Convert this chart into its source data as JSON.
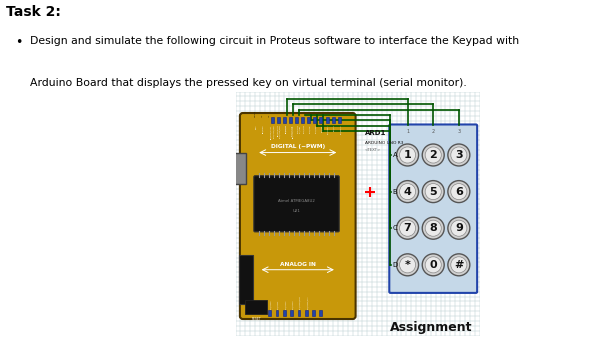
{
  "title": "Task 2:",
  "bullet_line1": "Design and simulate the following circuit in Proteus software to interface the Keypad with",
  "bullet_line2": "Arduino Board that displays the pressed key on virtual terminal (serial monitor).",
  "caption": "Assignment",
  "bg_color": "#ccdde0",
  "grid_color": "#b8cdd0",
  "arduino_body_color": "#c8980a",
  "chip_color": "#111111",
  "wire_color": "#005500",
  "wire_color_blue": "#003388",
  "keypad_bg": "#c5d8e8",
  "keypad_border": "#2244aa",
  "ard_label": "ARD1",
  "ard_sublabel": "ARDUINO UNO R3",
  "ard_subtext": "<TEXT>",
  "digital_label": "DIGITAL (~PWM)",
  "analog_label": "ANALOG IN",
  "row_labels": [
    "A",
    "B",
    "C",
    "D"
  ],
  "col_labels": [
    "1",
    "2",
    "3"
  ],
  "keypad_keys": [
    [
      "1",
      "2",
      "3"
    ],
    [
      "4",
      "5",
      "6"
    ],
    [
      "7",
      "8",
      "9"
    ],
    [
      "*",
      "0",
      "#"
    ]
  ]
}
